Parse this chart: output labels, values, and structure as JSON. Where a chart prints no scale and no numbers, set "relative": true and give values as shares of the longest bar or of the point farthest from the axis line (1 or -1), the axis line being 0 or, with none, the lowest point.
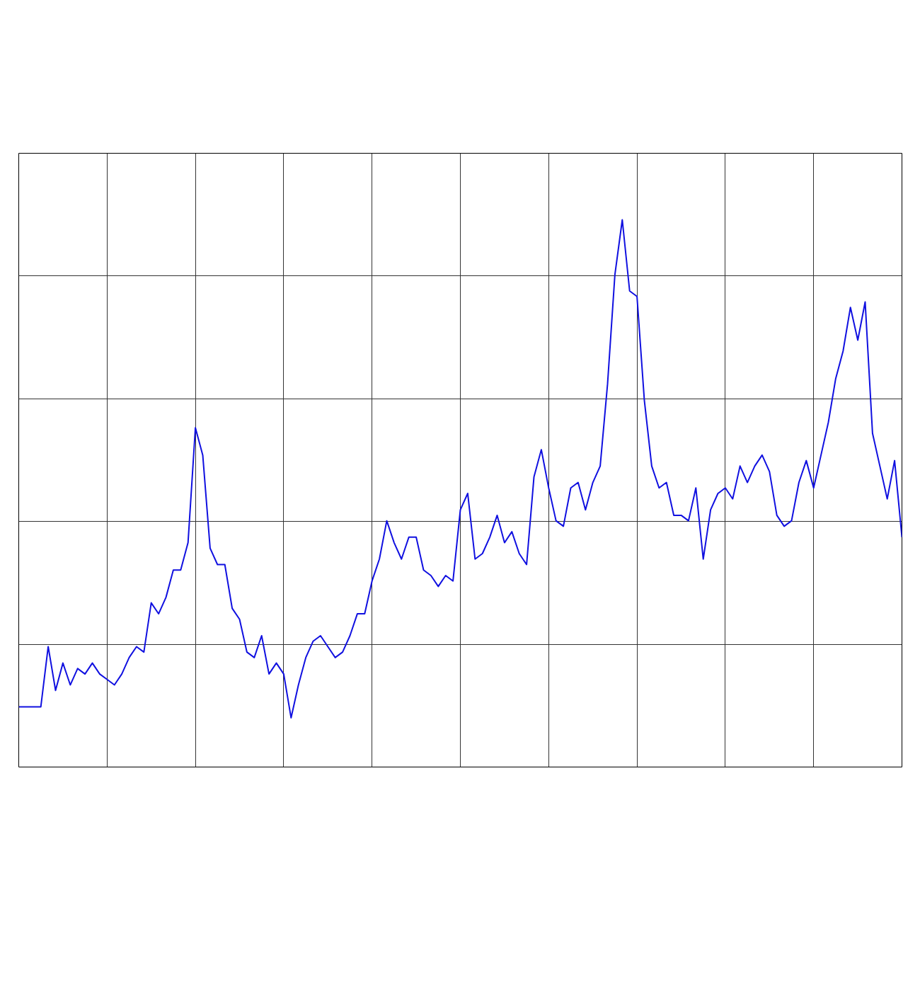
{
  "chart_data": {
    "type": "line",
    "relative": true,
    "grid": true,
    "categories": [
      null,
      null,
      null,
      null,
      null,
      null,
      null,
      null,
      null,
      null,
      null,
      null,
      null,
      null,
      null,
      null,
      null,
      null,
      null,
      null,
      null,
      null,
      null,
      null,
      null,
      null,
      null,
      null,
      null,
      null,
      null,
      null,
      null,
      null,
      null,
      null,
      null,
      null,
      null,
      null,
      null,
      null,
      null,
      null,
      null,
      null,
      null,
      null,
      null,
      null,
      null,
      null,
      null,
      null,
      null,
      null,
      null,
      null,
      null,
      null,
      null,
      null,
      null,
      null,
      null,
      null,
      null,
      null,
      null,
      null,
      null,
      null,
      null,
      null,
      null,
      null,
      null,
      null,
      null,
      null,
      null,
      null,
      null,
      null,
      null,
      null,
      null,
      null,
      null,
      null,
      null,
      null,
      null,
      null,
      null,
      null,
      null,
      null,
      null,
      null,
      null,
      null,
      null,
      null,
      null,
      null,
      null,
      null,
      null,
      null,
      null,
      null,
      null,
      null,
      null,
      null,
      null,
      null,
      null,
      null,
      null
    ],
    "series": [
      {
        "color": "#1010e0",
        "values": [
          0.11,
          0.11,
          0.11,
          0.11,
          0.22,
          0.14,
          0.19,
          0.15,
          0.18,
          0.17,
          0.19,
          0.17,
          0.16,
          0.15,
          0.17,
          0.2,
          0.22,
          0.21,
          0.3,
          0.28,
          0.31,
          0.36,
          0.36,
          0.41,
          0.62,
          0.57,
          0.4,
          0.37,
          0.37,
          0.29,
          0.27,
          0.21,
          0.2,
          0.24,
          0.17,
          0.19,
          0.17,
          0.09,
          0.15,
          0.2,
          0.23,
          0.24,
          0.22,
          0.2,
          0.21,
          0.24,
          0.28,
          0.28,
          0.34,
          0.38,
          0.45,
          0.41,
          0.38,
          0.42,
          0.42,
          0.36,
          0.35,
          0.33,
          0.35,
          0.34,
          0.47,
          0.5,
          0.38,
          0.39,
          0.42,
          0.46,
          0.41,
          0.43,
          0.39,
          0.37,
          0.53,
          0.58,
          0.51,
          0.45,
          0.44,
          0.51,
          0.52,
          0.47,
          0.52,
          0.55,
          0.7,
          0.9,
          1,
          0.87,
          0.86,
          0.67,
          0.55,
          0.51,
          0.52,
          0.46,
          0.46,
          0.45,
          0.51,
          0.38,
          0.47,
          0.5,
          0.51,
          0.49,
          0.55,
          0.52,
          0.55,
          0.57,
          0.54,
          0.46,
          0.44,
          0.45,
          0.52,
          0.56,
          0.51,
          0.57,
          0.63,
          0.71,
          0.76,
          0.84,
          0.78,
          0.85,
          0.61,
          0.55,
          0.49,
          0.56,
          0.42
        ]
      }
    ]
  }
}
